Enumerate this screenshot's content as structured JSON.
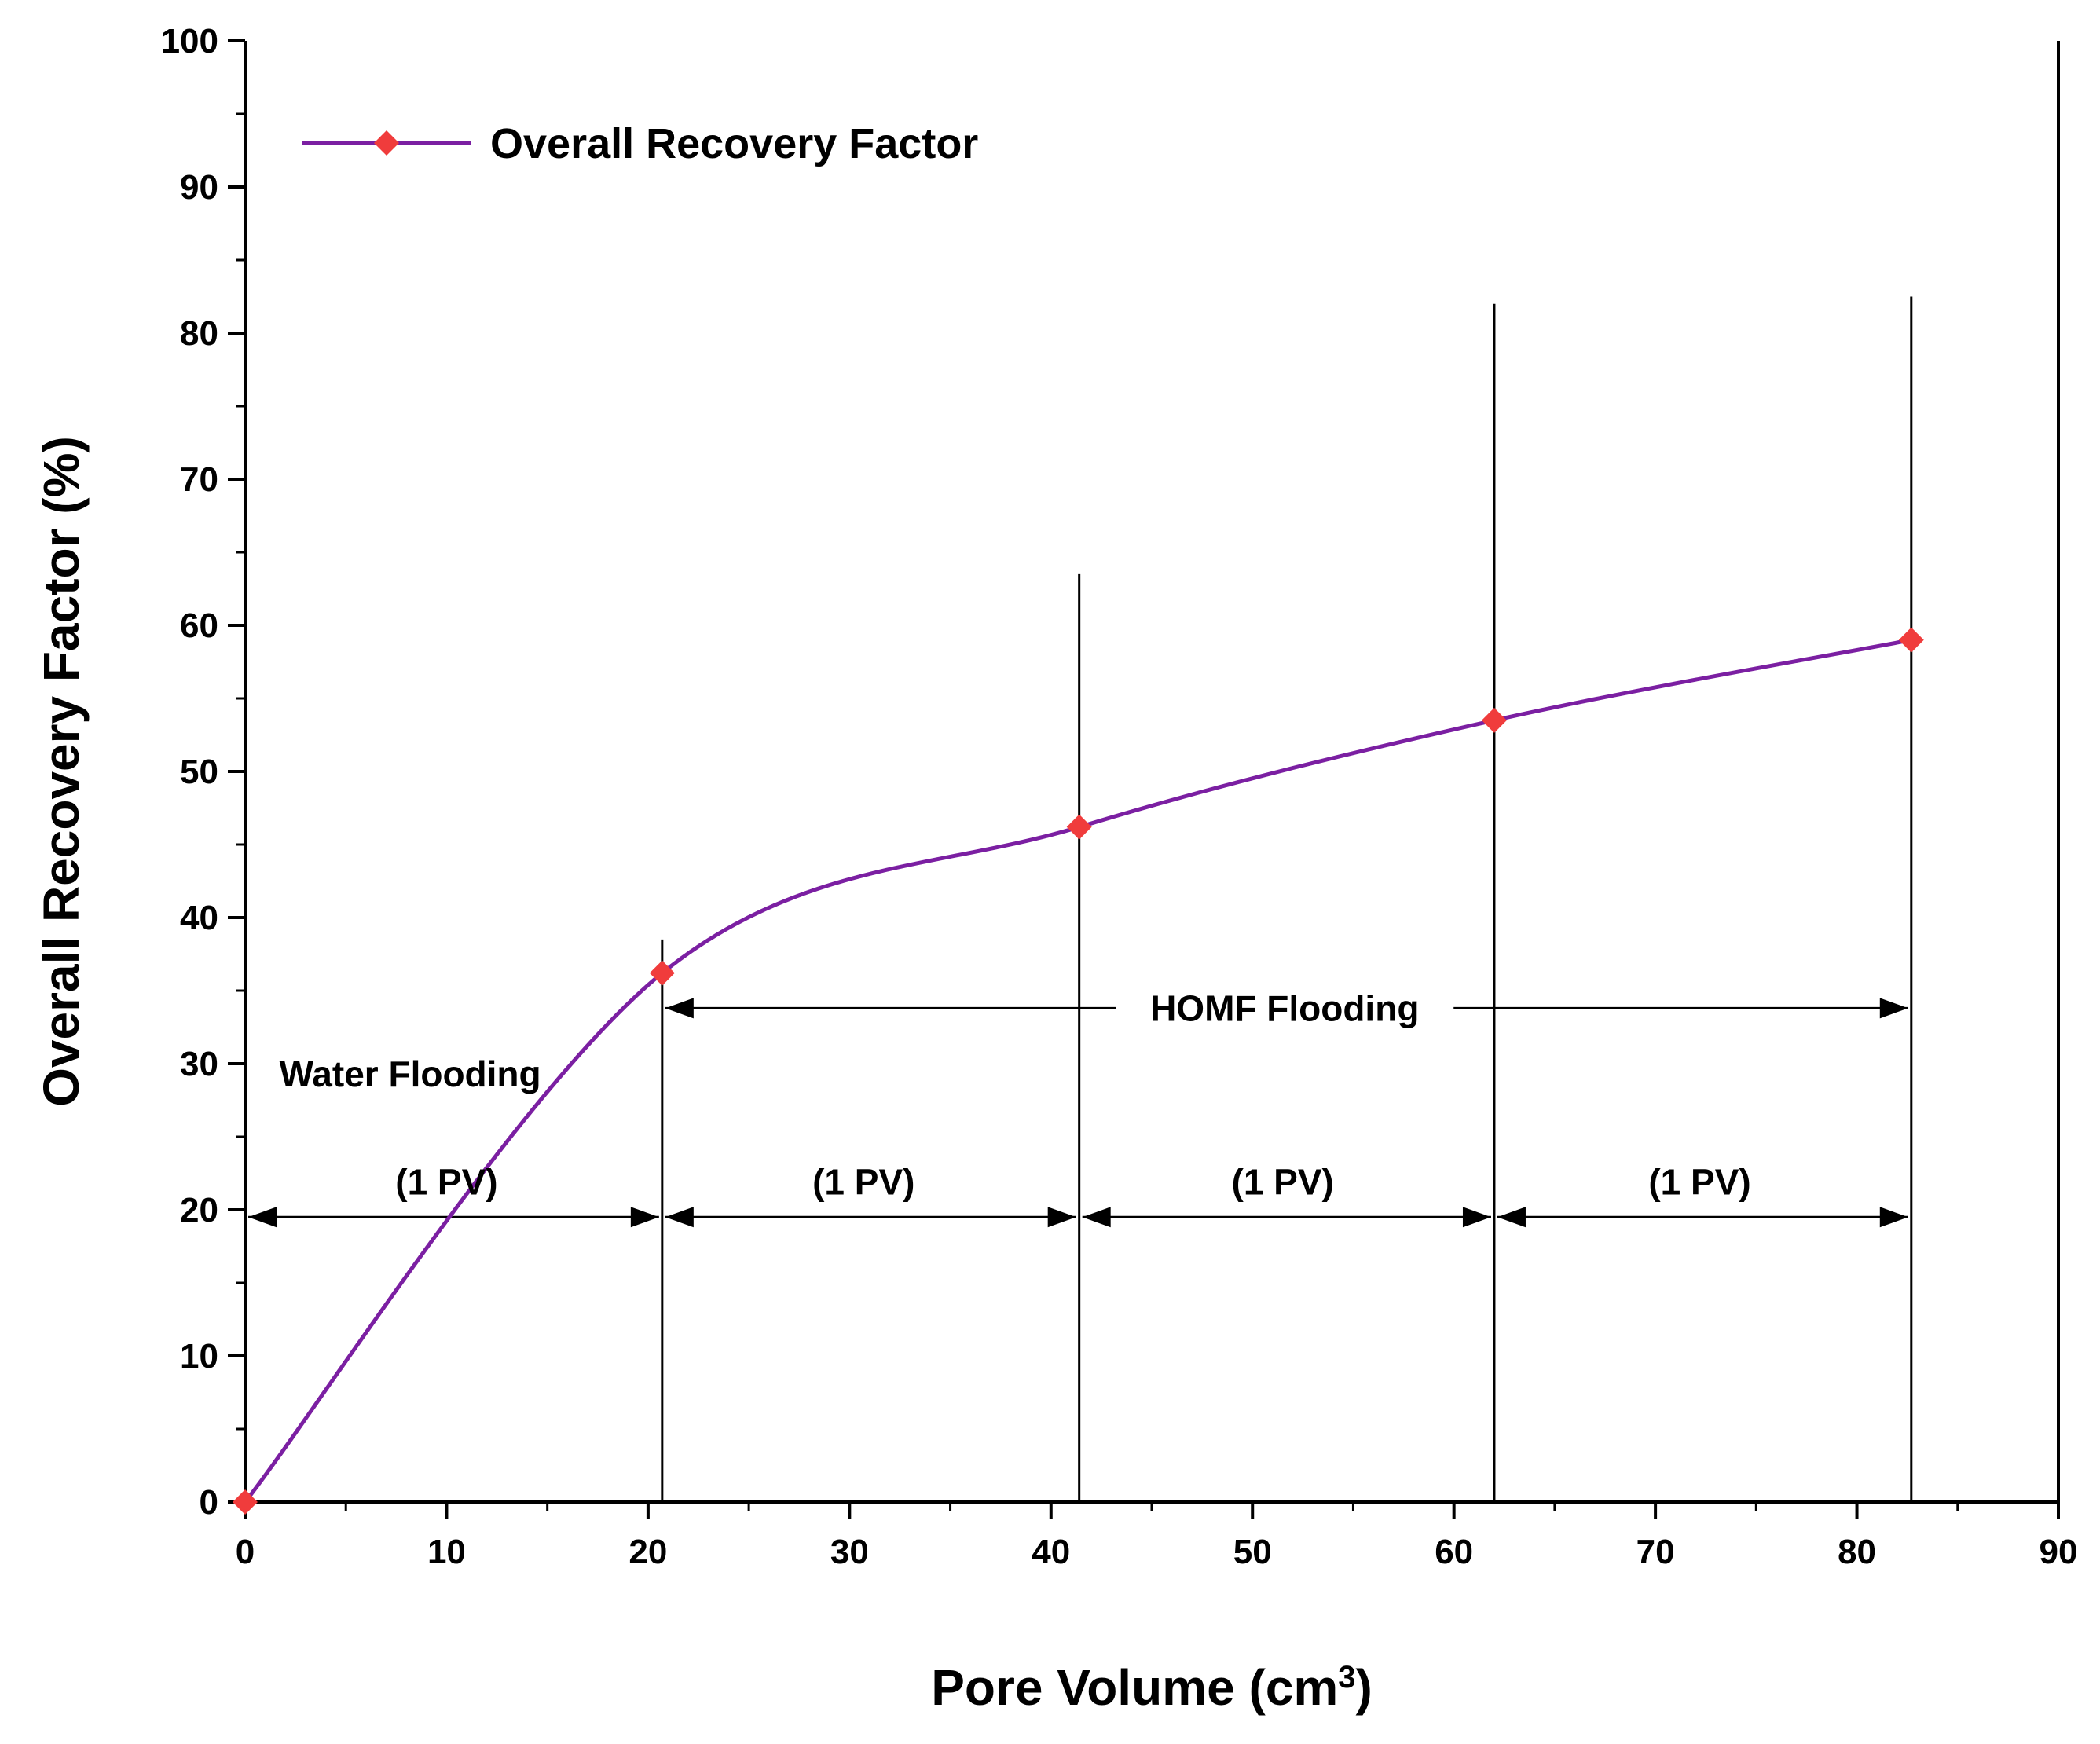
{
  "chart_data": {
    "type": "line",
    "title": "",
    "xlabel_main": "Pore Volume (cm",
    "xlabel_sup": "3",
    "xlabel_close": ")",
    "ylabel": "Overall Recovery Factor (%)",
    "xlim": [
      0,
      90
    ],
    "ylim": [
      0,
      100
    ],
    "x_ticks": [
      "0",
      "10",
      "20",
      "30",
      "40",
      "50",
      "60",
      "70",
      "80",
      "90"
    ],
    "y_ticks": [
      "0",
      "10",
      "20",
      "30",
      "40",
      "50",
      "60",
      "70",
      "80",
      "90",
      "100"
    ],
    "x_tick_values": [
      0,
      10,
      20,
      30,
      40,
      50,
      60,
      70,
      80,
      90
    ],
    "y_tick_values": [
      0,
      10,
      20,
      30,
      40,
      50,
      60,
      70,
      80,
      90,
      100
    ],
    "x_minor_step": 5,
    "y_minor_step": 5,
    "grid": false,
    "legend_position": "top-left",
    "series": [
      {
        "name": "Overall Recovery Factor",
        "color": "#7B1FA2",
        "marker_color": "#F03C3C",
        "marker": "diamond",
        "x": [
          0,
          20.7,
          41.4,
          62.0,
          82.7
        ],
        "y": [
          0,
          36.2,
          46.2,
          53.5,
          59.0
        ]
      }
    ],
    "vertical_lines": [
      {
        "x": 20.7,
        "y_top": 38.5
      },
      {
        "x": 41.4,
        "y_top": 63.5
      },
      {
        "x": 62.0,
        "y_top": 82.0
      },
      {
        "x": 82.7,
        "y_top": 82.5
      }
    ],
    "pv_arrows": {
      "y": 19.5,
      "segments": [
        [
          0,
          20.7
        ],
        [
          20.7,
          41.4
        ],
        [
          41.4,
          62.0
        ],
        [
          62.0,
          82.7
        ]
      ]
    },
    "homf_arrow": {
      "y": 33.8,
      "x_from": 20.7,
      "x_to": 82.7
    },
    "annotations": [
      {
        "text": "Water Flooding",
        "x": 1.7,
        "y": 29.3,
        "anchor": "start"
      },
      {
        "text": "HOMF Flooding",
        "x": 51.6,
        "y": 33.8,
        "anchor": "middle"
      },
      {
        "text": "(1 PV)",
        "x": 10.0,
        "y": 21.9,
        "anchor": "middle"
      },
      {
        "text": "(1 PV)",
        "x": 30.7,
        "y": 21.9,
        "anchor": "middle"
      },
      {
        "text": "(1 PV)",
        "x": 51.5,
        "y": 21.9,
        "anchor": "middle"
      },
      {
        "text": "(1 PV)",
        "x": 72.2,
        "y": 21.9,
        "anchor": "middle"
      }
    ]
  }
}
